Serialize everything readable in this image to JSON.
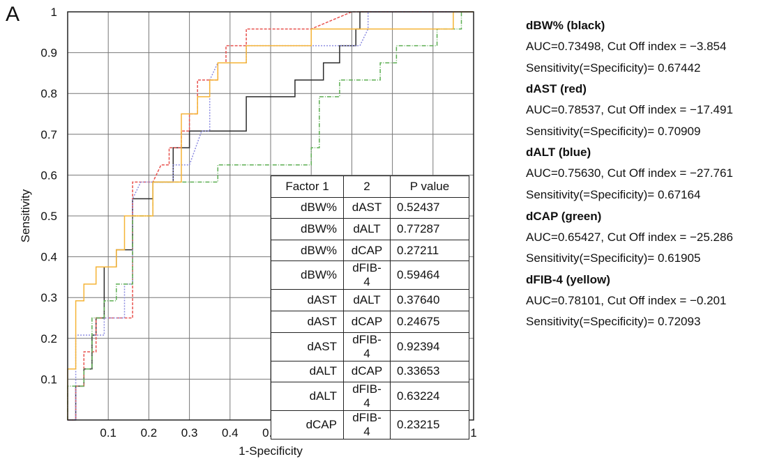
{
  "panel_label": "A",
  "chart_data": {
    "type": "line",
    "xlabel": "1-Specificity",
    "ylabel": "Sensitivity",
    "xlim": [
      0,
      1
    ],
    "ylim": [
      0,
      1
    ],
    "xticks": [
      "0.1",
      "0.2",
      "0.3",
      "0.4",
      "0.5",
      "0.6",
      "0.7",
      "0.8",
      "0.9",
      "1"
    ],
    "yticks": [
      "0.1",
      "0.2",
      "0.3",
      "0.4",
      "0.5",
      "0.6",
      "0.7",
      "0.8",
      "0.9",
      "1"
    ],
    "grid": true,
    "series": [
      {
        "name": "dBW% (black)",
        "color": "#2b2b2b",
        "dash": "none",
        "points": [
          [
            0,
            0
          ],
          [
            0.02,
            0
          ],
          [
            0.02,
            0.083
          ],
          [
            0.04,
            0.083
          ],
          [
            0.04,
            0.125
          ],
          [
            0.06,
            0.125
          ],
          [
            0.06,
            0.208
          ],
          [
            0.07,
            0.208
          ],
          [
            0.07,
            0.25
          ],
          [
            0.09,
            0.25
          ],
          [
            0.09,
            0.375
          ],
          [
            0.12,
            0.375
          ],
          [
            0.12,
            0.417
          ],
          [
            0.16,
            0.417
          ],
          [
            0.16,
            0.542
          ],
          [
            0.21,
            0.542
          ],
          [
            0.21,
            0.583
          ],
          [
            0.26,
            0.583
          ],
          [
            0.26,
            0.667
          ],
          [
            0.3,
            0.667
          ],
          [
            0.3,
            0.708
          ],
          [
            0.44,
            0.708
          ],
          [
            0.44,
            0.792
          ],
          [
            0.56,
            0.792
          ],
          [
            0.56,
            0.833
          ],
          [
            0.63,
            0.833
          ],
          [
            0.63,
            0.875
          ],
          [
            0.67,
            0.875
          ],
          [
            0.67,
            0.917
          ],
          [
            0.71,
            0.917
          ],
          [
            0.71,
            0.958
          ],
          [
            0.72,
            0.958
          ],
          [
            0.72,
            1
          ],
          [
            1,
            1
          ]
        ]
      },
      {
        "name": "dAST (red)",
        "color": "#e8524e",
        "dash": "4 2",
        "points": [
          [
            0,
            0
          ],
          [
            0.02,
            0
          ],
          [
            0.02,
            0.083
          ],
          [
            0.04,
            0.083
          ],
          [
            0.04,
            0.167
          ],
          [
            0.07,
            0.167
          ],
          [
            0.07,
            0.25
          ],
          [
            0.16,
            0.25
          ],
          [
            0.16,
            0.583
          ],
          [
            0.21,
            0.583
          ],
          [
            0.23,
            0.625
          ],
          [
            0.25,
            0.625
          ],
          [
            0.25,
            0.667
          ],
          [
            0.28,
            0.667
          ],
          [
            0.28,
            0.708
          ],
          [
            0.3,
            0.708
          ],
          [
            0.3,
            0.75
          ],
          [
            0.32,
            0.75
          ],
          [
            0.32,
            0.833
          ],
          [
            0.37,
            0.833
          ],
          [
            0.37,
            0.875
          ],
          [
            0.39,
            0.875
          ],
          [
            0.39,
            0.917
          ],
          [
            0.44,
            0.917
          ],
          [
            0.44,
            0.958
          ],
          [
            0.6,
            0.958
          ],
          [
            0.7,
            1
          ],
          [
            1,
            1
          ]
        ]
      },
      {
        "name": "dALT (blue)",
        "color": "#8a8ae0",
        "dash": "2 2",
        "points": [
          [
            0,
            0
          ],
          [
            0.02,
            0
          ],
          [
            0.02,
            0.208
          ],
          [
            0.09,
            0.208
          ],
          [
            0.09,
            0.25
          ],
          [
            0.14,
            0.25
          ],
          [
            0.14,
            0.333
          ],
          [
            0.16,
            0.333
          ],
          [
            0.16,
            0.542
          ],
          [
            0.18,
            0.583
          ],
          [
            0.26,
            0.583
          ],
          [
            0.26,
            0.625
          ],
          [
            0.3,
            0.625
          ],
          [
            0.33,
            0.708
          ],
          [
            0.35,
            0.708
          ],
          [
            0.35,
            0.833
          ],
          [
            0.37,
            0.875
          ],
          [
            0.44,
            0.875
          ],
          [
            0.44,
            0.917
          ],
          [
            0.72,
            0.917
          ],
          [
            0.74,
            0.958
          ],
          [
            0.74,
            1
          ],
          [
            1,
            1
          ]
        ]
      },
      {
        "name": "dCAP (green)",
        "color": "#5cae52",
        "dash": "6 2 1 2",
        "points": [
          [
            0,
            0
          ],
          [
            0,
            0.083
          ],
          [
            0.04,
            0.083
          ],
          [
            0.04,
            0.125
          ],
          [
            0.06,
            0.125
          ],
          [
            0.06,
            0.25
          ],
          [
            0.09,
            0.25
          ],
          [
            0.09,
            0.292
          ],
          [
            0.12,
            0.292
          ],
          [
            0.12,
            0.333
          ],
          [
            0.16,
            0.333
          ],
          [
            0.16,
            0.5
          ],
          [
            0.21,
            0.5
          ],
          [
            0.21,
            0.583
          ],
          [
            0.37,
            0.583
          ],
          [
            0.37,
            0.625
          ],
          [
            0.6,
            0.625
          ],
          [
            0.6,
            0.667
          ],
          [
            0.62,
            0.667
          ],
          [
            0.62,
            0.792
          ],
          [
            0.67,
            0.792
          ],
          [
            0.67,
            0.833
          ],
          [
            0.77,
            0.833
          ],
          [
            0.77,
            0.875
          ],
          [
            0.81,
            0.875
          ],
          [
            0.81,
            0.917
          ],
          [
            0.91,
            0.917
          ],
          [
            0.91,
            0.958
          ],
          [
            0.97,
            0.958
          ],
          [
            0.97,
            1
          ],
          [
            1,
            1
          ]
        ]
      },
      {
        "name": "dFIB-4 (yellow)",
        "color": "#f5b335",
        "dash": "none",
        "points": [
          [
            0,
            0
          ],
          [
            0,
            0.125
          ],
          [
            0.02,
            0.125
          ],
          [
            0.02,
            0.292
          ],
          [
            0.04,
            0.292
          ],
          [
            0.04,
            0.333
          ],
          [
            0.07,
            0.333
          ],
          [
            0.07,
            0.375
          ],
          [
            0.12,
            0.375
          ],
          [
            0.12,
            0.417
          ],
          [
            0.14,
            0.417
          ],
          [
            0.14,
            0.5
          ],
          [
            0.21,
            0.5
          ],
          [
            0.21,
            0.583
          ],
          [
            0.28,
            0.583
          ],
          [
            0.28,
            0.75
          ],
          [
            0.32,
            0.75
          ],
          [
            0.32,
            0.792
          ],
          [
            0.35,
            0.792
          ],
          [
            0.35,
            0.833
          ],
          [
            0.37,
            0.833
          ],
          [
            0.37,
            0.875
          ],
          [
            0.44,
            0.875
          ],
          [
            0.44,
            0.917
          ],
          [
            0.6,
            0.917
          ],
          [
            0.6,
            0.958
          ],
          [
            0.95,
            0.958
          ],
          [
            0.95,
            1
          ],
          [
            1,
            1
          ]
        ]
      }
    ],
    "table": {
      "header": [
        "Factor 1",
        "2",
        "P value"
      ],
      "rows": [
        [
          "dBW%",
          "dAST",
          "0.52437"
        ],
        [
          "dBW%",
          "dALT",
          "0.77287"
        ],
        [
          "dBW%",
          "dCAP",
          "0.27211"
        ],
        [
          "dBW%",
          "dFIB-4",
          "0.59464"
        ],
        [
          "dAST",
          "dALT",
          "0.37640"
        ],
        [
          "dAST",
          "dCAP",
          "0.24675"
        ],
        [
          "dAST",
          "dFIB-4",
          "0.92394"
        ],
        [
          "dALT",
          "dCAP",
          "0.33653"
        ],
        [
          "dALT",
          "dFIB-4",
          "0.63224"
        ],
        [
          "dCAP",
          "dFIB-4",
          "0.23215"
        ]
      ]
    },
    "legend": [
      {
        "name": "dBW% (black)",
        "auc": "AUC=0.73498, Cut Off index = −3.854",
        "sens": "Sensitivity(=Specificity)= 0.67442"
      },
      {
        "name": "dAST (red)",
        "auc": "AUC=0.78537, Cut Off index = −17.491",
        "sens": "Sensitivity(=Specificity)= 0.70909"
      },
      {
        "name": "dALT (blue)",
        "auc": "AUC=0.75630, Cut Off index = −27.761",
        "sens": "Sensitivity(=Specificity)= 0.67164"
      },
      {
        "name": "dCAP (green)",
        "auc": "AUC=0.65427, Cut Off index = −25.286",
        "sens": "Sensitivity(=Specificity)= 0.61905"
      },
      {
        "name": "dFIB-4 (yellow)",
        "auc": "AUC=0.78101, Cut Off index = −0.201",
        "sens": "Sensitivity(=Specificity)= 0.72093"
      }
    ]
  }
}
